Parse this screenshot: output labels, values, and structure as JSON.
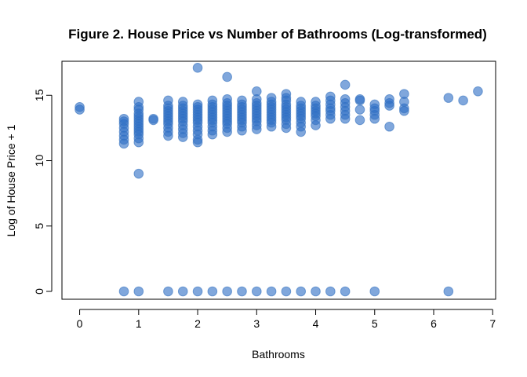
{
  "chart_data": {
    "type": "scatter",
    "title": "Figure 2. House Price vs Number of Bathrooms (Log-transformed)",
    "xlabel": "Bathrooms",
    "ylabel": "Log of House Price + 1",
    "xlim": [
      -0.3,
      7.05
    ],
    "ylim": [
      -0.6,
      17.6
    ],
    "xticks": [
      0,
      1,
      2,
      3,
      4,
      5,
      6,
      7
    ],
    "yticks": [
      0,
      5,
      10,
      15
    ],
    "grid": false,
    "legend": "none",
    "point_color": "#2b6cc4",
    "point_alpha": 0.6,
    "points_by_bathrooms": [
      {
        "x": 0,
        "y": [
          13.9,
          14.1
        ]
      },
      {
        "x": 0.75,
        "y": [
          0,
          11.3,
          11.6,
          11.9,
          12.2,
          12.5,
          12.8,
          13.0,
          13.2
        ]
      },
      {
        "x": 1,
        "y": [
          0,
          9.0,
          11.4,
          11.7,
          12.0,
          12.2,
          12.4,
          12.6,
          12.8,
          13.0,
          13.2,
          13.4,
          13.6,
          13.9,
          14.1,
          14.5
        ]
      },
      {
        "x": 1.25,
        "y": [
          13.1,
          13.2
        ]
      },
      {
        "x": 1.5,
        "y": [
          0,
          11.9,
          12.2,
          12.5,
          12.8,
          13.0,
          13.2,
          13.4,
          13.6,
          13.8,
          14.0,
          14.2,
          14.6
        ]
      },
      {
        "x": 1.75,
        "y": [
          0,
          11.8,
          12.1,
          12.4,
          12.7,
          13.0,
          13.2,
          13.4,
          13.6,
          13.8,
          14.0,
          14.2,
          14.5
        ]
      },
      {
        "x": 2,
        "y": [
          0,
          11.4,
          11.6,
          12.0,
          12.3,
          12.6,
          12.9,
          13.1,
          13.3,
          13.5,
          13.7,
          13.9,
          14.1,
          14.3,
          17.1
        ]
      },
      {
        "x": 2.25,
        "y": [
          0,
          12.0,
          12.3,
          12.6,
          12.9,
          13.1,
          13.3,
          13.5,
          13.7,
          13.9,
          14.1,
          14.3,
          14.6
        ]
      },
      {
        "x": 2.5,
        "y": [
          0,
          12.2,
          12.5,
          12.8,
          13.0,
          13.2,
          13.4,
          13.6,
          13.8,
          14.0,
          14.2,
          14.4,
          14.7,
          16.4
        ]
      },
      {
        "x": 2.75,
        "y": [
          0,
          12.3,
          12.6,
          12.9,
          13.1,
          13.3,
          13.5,
          13.7,
          13.9,
          14.1,
          14.3,
          14.6
        ]
      },
      {
        "x": 3,
        "y": [
          0,
          12.4,
          12.7,
          13.0,
          13.2,
          13.4,
          13.6,
          13.8,
          14.0,
          14.2,
          14.4,
          14.7,
          15.3
        ]
      },
      {
        "x": 3.25,
        "y": [
          0,
          12.6,
          12.9,
          13.1,
          13.3,
          13.5,
          13.7,
          13.9,
          14.1,
          14.3,
          14.5,
          14.8
        ]
      },
      {
        "x": 3.5,
        "y": [
          0,
          12.5,
          12.8,
          13.1,
          13.3,
          13.5,
          13.7,
          13.9,
          14.1,
          14.3,
          14.6,
          14.8,
          15.1
        ]
      },
      {
        "x": 3.75,
        "y": [
          0,
          12.2,
          12.6,
          12.9,
          13.2,
          13.4,
          13.6,
          13.8,
          14.0,
          14.2,
          14.5
        ]
      },
      {
        "x": 4,
        "y": [
          0,
          12.7,
          13.1,
          13.4,
          13.6,
          13.8,
          14.0,
          14.2,
          14.5
        ]
      },
      {
        "x": 4.25,
        "y": [
          0,
          13.2,
          13.5,
          13.8,
          14.0,
          14.3,
          14.6,
          14.9
        ]
      },
      {
        "x": 4.5,
        "y": [
          0,
          13.2,
          13.5,
          13.8,
          14.1,
          14.4,
          14.7,
          15.8
        ]
      },
      {
        "x": 4.75,
        "y": [
          13.1,
          13.9,
          14.6,
          14.7
        ]
      },
      {
        "x": 5,
        "y": [
          0,
          13.2,
          13.5,
          13.8,
          14.0,
          14.3
        ]
      },
      {
        "x": 5.25,
        "y": [
          12.6,
          14.2,
          14.4,
          14.7
        ]
      },
      {
        "x": 5.5,
        "y": [
          13.8,
          14.0,
          14.5,
          15.1
        ]
      },
      {
        "x": 6.25,
        "y": [
          0,
          14.8
        ]
      },
      {
        "x": 6.5,
        "y": [
          14.6
        ]
      },
      {
        "x": 6.75,
        "y": [
          15.3
        ]
      }
    ]
  }
}
